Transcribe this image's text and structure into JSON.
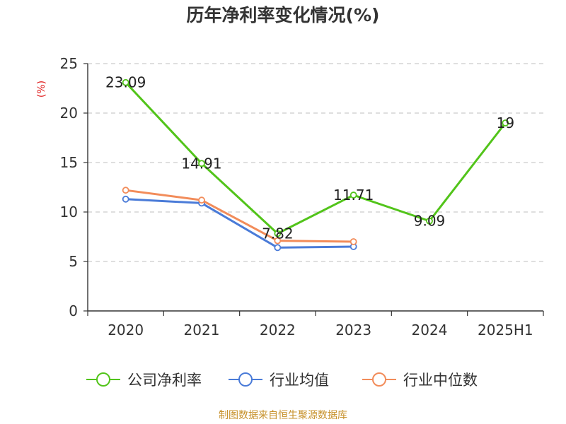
{
  "title": "历年净利率变化情况(%)",
  "source_note": "制图数据来自恒生聚源数据库",
  "colors": {
    "company": "#52c41a",
    "industry_avg": "#4a7bd8",
    "industry_median": "#f28c5a",
    "axis": "#333333",
    "grid": "#cccccc",
    "unit": "#e02020",
    "source": "#c7912b"
  },
  "chart_data": {
    "type": "line",
    "title": "历年净利率变化情况(%)",
    "ylabel": "(%)",
    "xlabel": "",
    "categories": [
      "2020",
      "2021",
      "2022",
      "2023",
      "2024",
      "2025H1"
    ],
    "ylim": [
      0,
      25
    ],
    "yticks": [
      0,
      5,
      10,
      15,
      20,
      25
    ],
    "grid": true,
    "legend_position": "bottom",
    "series": [
      {
        "name": "公司净利率",
        "color": "#52c41a",
        "values": [
          23.09,
          14.91,
          7.82,
          11.71,
          9.09,
          19
        ],
        "labels": [
          "23.09",
          "14.91",
          "7.82",
          "11.71",
          "9.09",
          "19"
        ],
        "show_labels": true
      },
      {
        "name": "行业均值",
        "color": "#4a7bd8",
        "values": [
          11.3,
          10.9,
          6.4,
          6.5,
          null,
          null
        ],
        "show_labels": false
      },
      {
        "name": "行业中位数",
        "color": "#f28c5a",
        "values": [
          12.2,
          11.2,
          7.1,
          7.0,
          null,
          null
        ],
        "show_labels": false
      }
    ]
  }
}
